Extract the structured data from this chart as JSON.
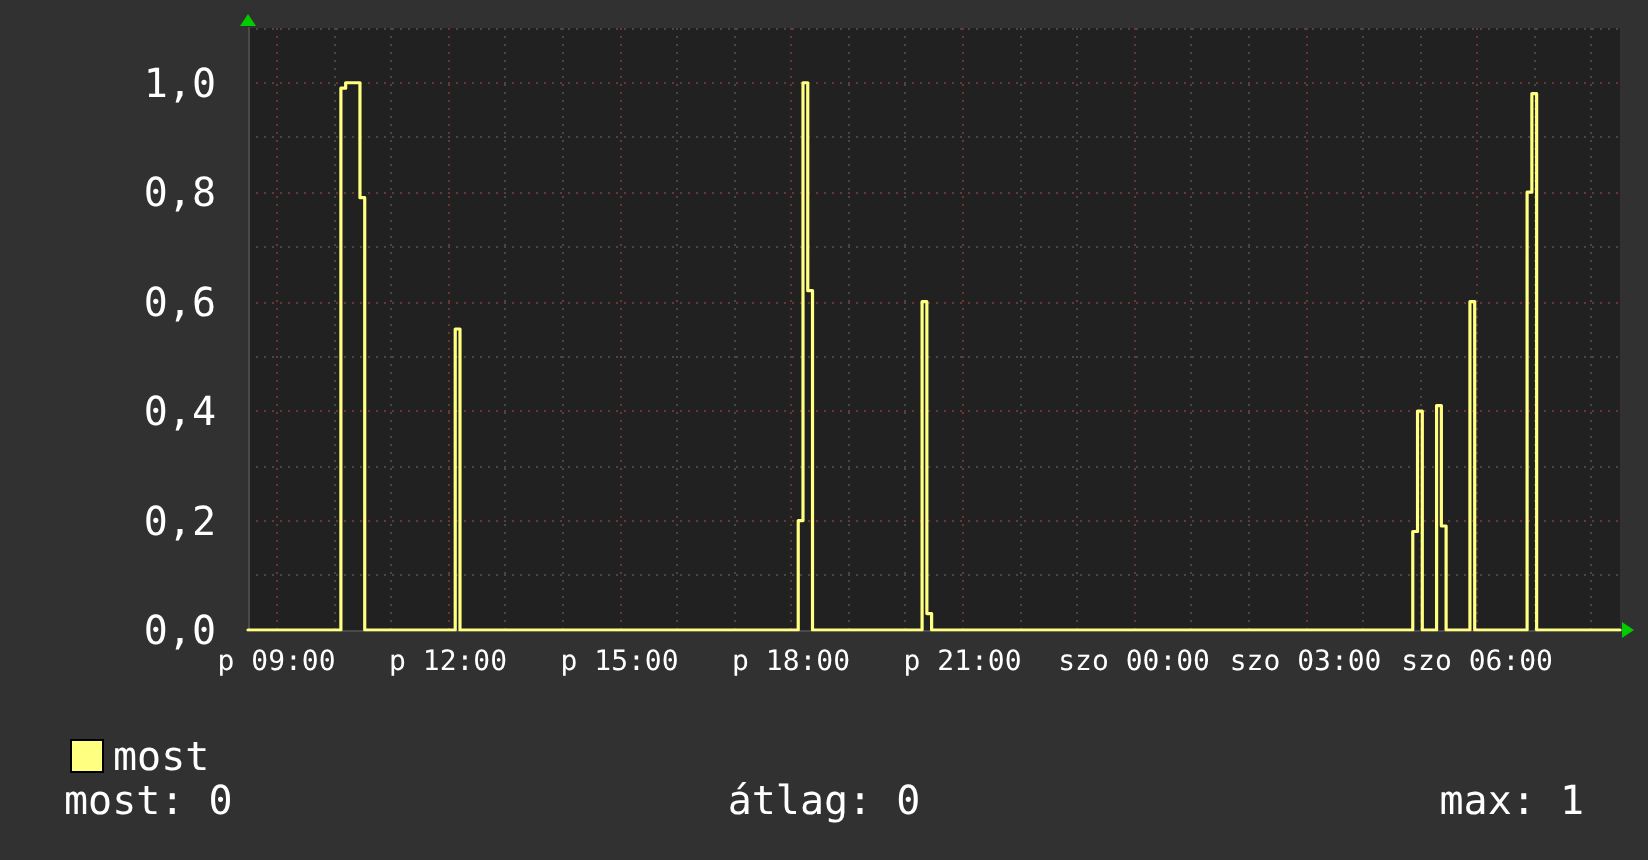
{
  "chart_data": {
    "type": "step",
    "categories": [
      null,
      null,
      null,
      null,
      null,
      null,
      "p 09:00",
      null,
      null,
      null,
      null,
      null,
      null,
      null,
      null,
      null,
      null,
      null,
      null,
      null,
      null,
      null,
      null,
      null,
      null,
      null,
      null,
      null,
      null,
      null,
      null,
      null,
      null,
      null,
      null,
      null,
      null,
      null,
      null,
      null,
      null,
      null,
      "p 12:00",
      null,
      null,
      null,
      null,
      null,
      null,
      null,
      null,
      null,
      null,
      null,
      null,
      null,
      null,
      null,
      null,
      null,
      null,
      null,
      null,
      null,
      null,
      null,
      null,
      null,
      null,
      null,
      null,
      null,
      null,
      null,
      null,
      null,
      null,
      null,
      "p 15:00",
      null,
      null,
      null,
      null,
      null,
      null,
      null,
      null,
      null,
      null,
      null,
      null,
      null,
      null,
      null,
      null,
      null,
      null,
      null,
      null,
      null,
      null,
      null,
      null,
      null,
      null,
      null,
      null,
      null,
      null,
      null,
      null,
      null,
      null,
      null,
      "p 18:00",
      null,
      null,
      null,
      null,
      null,
      null,
      null,
      null,
      null,
      null,
      null,
      null,
      null,
      null,
      null,
      null,
      null,
      null,
      null,
      null,
      null,
      null,
      null,
      null,
      null,
      null,
      null,
      null,
      null,
      null,
      null,
      null,
      null,
      null,
      null,
      "p 21:00",
      null,
      null,
      null,
      null,
      null,
      null,
      null,
      null,
      null,
      null,
      null,
      null,
      null,
      null,
      null,
      null,
      null,
      null,
      null,
      null,
      null,
      null,
      null,
      null,
      null,
      null,
      null,
      null,
      null,
      null,
      null,
      null,
      null,
      null,
      null,
      "szo 00:00",
      null,
      null,
      null,
      null,
      null,
      null,
      null,
      null,
      null,
      null,
      null,
      null,
      null,
      null,
      null,
      null,
      null,
      null,
      null,
      null,
      null,
      null,
      null,
      null,
      null,
      null,
      null,
      null,
      null,
      null,
      null,
      null,
      null,
      null,
      null,
      "szo 03:00",
      null,
      null,
      null,
      null,
      null,
      null,
      null,
      null,
      null,
      null,
      null,
      null,
      null,
      null,
      null,
      null,
      null,
      null,
      null,
      null,
      null,
      null,
      null,
      null,
      null,
      null,
      null,
      null,
      null,
      null,
      null,
      null,
      null,
      null,
      null,
      "szo 06:00",
      null,
      null,
      null,
      null,
      null,
      null,
      null,
      null,
      null,
      null,
      null,
      null,
      null,
      null,
      null,
      null,
      null,
      null,
      null,
      null,
      null,
      null,
      null,
      null,
      null,
      null,
      null,
      null,
      null,
      null
    ],
    "series": [
      {
        "name": "most",
        "color": "#ffff80",
        "values": [
          0,
          0,
          0,
          0,
          0,
          0,
          0,
          0,
          0,
          0,
          0,
          0,
          0,
          0,
          0,
          0,
          0,
          0,
          0,
          0,
          0.99,
          1.0,
          1.0,
          1.0,
          0.79,
          0,
          0,
          0,
          0,
          0,
          0,
          0,
          0,
          0,
          0,
          0,
          0,
          0,
          0,
          0,
          0,
          0,
          0,
          0,
          0.55,
          0,
          0,
          0,
          0,
          0,
          0,
          0,
          0,
          0,
          0,
          0,
          0,
          0,
          0,
          0,
          0,
          0,
          0,
          0,
          0,
          0,
          0,
          0,
          0,
          0,
          0,
          0,
          0,
          0,
          0,
          0,
          0,
          0,
          0,
          0,
          0,
          0,
          0,
          0,
          0,
          0,
          0,
          0,
          0,
          0,
          0,
          0,
          0,
          0,
          0,
          0,
          0,
          0,
          0,
          0,
          0,
          0,
          0,
          0,
          0,
          0,
          0,
          0,
          0,
          0,
          0,
          0,
          0,
          0,
          0,
          0,
          0.2,
          1.0,
          0.62,
          0,
          0,
          0,
          0,
          0,
          0,
          0,
          0,
          0,
          0,
          0,
          0,
          0,
          0,
          0,
          0,
          0,
          0,
          0,
          0,
          0,
          0,
          0,
          0.6,
          0.03,
          0,
          0,
          0,
          0,
          0,
          0,
          0,
          0,
          0,
          0,
          0,
          0,
          0,
          0,
          0,
          0,
          0,
          0,
          0,
          0,
          0,
          0,
          0,
          0,
          0,
          0,
          0,
          0,
          0,
          0,
          0,
          0,
          0,
          0,
          0,
          0,
          0,
          0,
          0,
          0,
          0,
          0,
          0,
          0,
          0,
          0,
          0,
          0,
          0,
          0,
          0,
          0,
          0,
          0,
          0,
          0,
          0,
          0,
          0,
          0,
          0,
          0,
          0,
          0,
          0,
          0,
          0,
          0,
          0,
          0,
          0,
          0,
          0,
          0,
          0,
          0,
          0,
          0,
          0,
          0,
          0,
          0,
          0,
          0,
          0,
          0,
          0,
          0,
          0,
          0,
          0,
          0,
          0,
          0,
          0,
          0,
          0,
          0,
          0,
          0,
          0,
          0.18,
          0.4,
          0,
          0,
          0,
          0.41,
          0.19,
          0,
          0,
          0,
          0,
          0,
          0.6,
          0,
          0,
          0,
          0,
          0,
          0,
          0,
          0,
          0,
          0,
          0,
          0.8,
          0.98,
          0,
          0,
          0,
          0,
          0,
          0,
          0,
          0,
          0,
          0,
          0,
          0,
          0,
          0,
          0,
          0,
          0,
          0
        ]
      }
    ],
    "ylim": [
      0,
      1.1
    ],
    "yticks": [
      {
        "value": 0,
        "label": "0,0"
      },
      {
        "value": 0.1,
        "label": null
      },
      {
        "value": 0.2,
        "label": "0,2"
      },
      {
        "value": 0.3,
        "label": null
      },
      {
        "value": 0.4,
        "label": "0,4"
      },
      {
        "value": 0.5,
        "label": null
      },
      {
        "value": 0.6,
        "label": "0,6"
      },
      {
        "value": 0.7,
        "label": null
      },
      {
        "value": 0.8,
        "label": "0,8"
      },
      {
        "value": 0.9,
        "label": null
      },
      {
        "value": 1.0,
        "label": "1,0"
      },
      {
        "value": 1.1,
        "label": null
      }
    ],
    "grid": true,
    "legend": "bottom left",
    "annotations": [
      "most: 0",
      "átlag: 0",
      "max: 1"
    ]
  }
}
